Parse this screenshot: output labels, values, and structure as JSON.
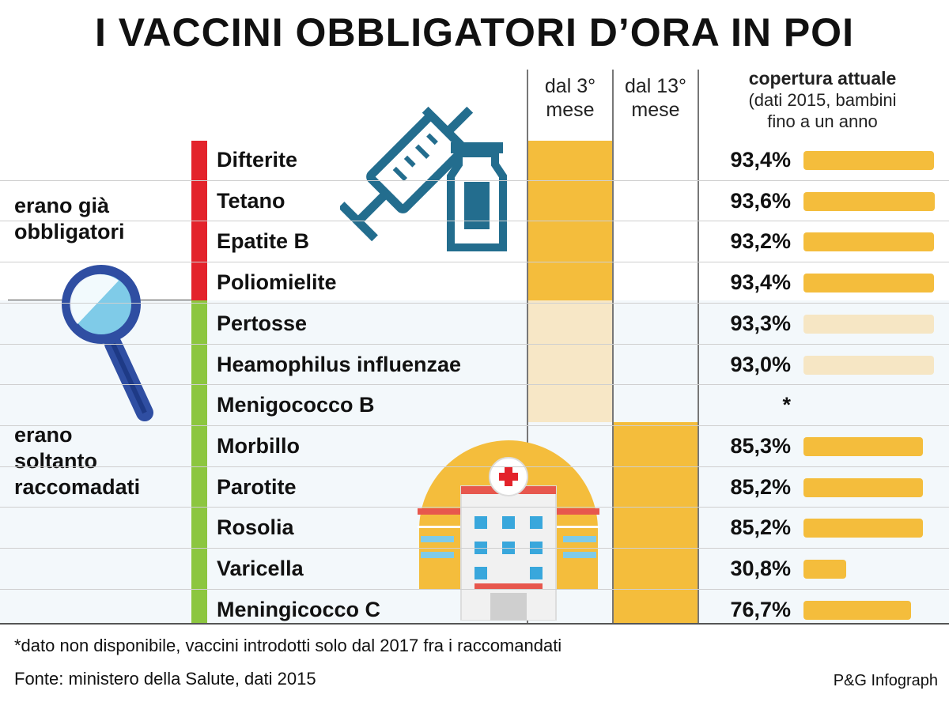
{
  "title": "I VACCINI OBBLIGATORI D’ORA IN POI",
  "columns": {
    "col1": [
      "dal 3°",
      "mese"
    ],
    "col2": [
      "dal 13°",
      "mese"
    ],
    "coverage_title": "copertura attuale",
    "coverage_sub1": "(dati 2015, bambini",
    "coverage_sub2": "fino a un anno"
  },
  "groups": {
    "already": [
      "erano già",
      "obbligatori"
    ],
    "recommended": [
      "erano",
      "soltanto",
      "raccomadati"
    ]
  },
  "chart_data": {
    "type": "bar",
    "title": "I VACCINI OBBLIGATORI D’ORA IN POI",
    "value_label": "copertura attuale (dati 2015, bambini fino a un anno",
    "categories": [
      "Difterite",
      "Tetano",
      "Epatite B",
      "Poliomielite",
      "Pertosse",
      "Heamophilus influenzae",
      "Menigococco B",
      "Morbillo",
      "Parotite",
      "Rosolia",
      "Varicella",
      "Meningicocco C"
    ],
    "values": [
      93.4,
      93.6,
      93.2,
      93.4,
      93.3,
      93.0,
      null,
      85.3,
      85.2,
      85.2,
      30.8,
      76.7
    ],
    "value_labels": [
      "93,4%",
      "93,6%",
      "93,2%",
      "93,4%",
      "93,3%",
      "93,0%",
      "*",
      "85,3%",
      "85,2%",
      "85,2%",
      "30,8%",
      "76,7%"
    ],
    "xlim": [
      0,
      100
    ],
    "schedule": [
      "dal 3° mese",
      "dal 3° mese",
      "dal 3° mese",
      "dal 3° mese",
      "dal 3° mese",
      "dal 3° mese",
      "dal 3° mese",
      "dal 13° mese",
      "dal 13° mese",
      "dal 13° mese",
      "dal 13° mese",
      "dal 13° mese"
    ],
    "group": [
      "erano già obbligatori",
      "erano già obbligatori",
      "erano già obbligatori",
      "erano già obbligatori",
      "erano soltanto raccomadati",
      "erano soltanto raccomadati",
      "erano soltanto raccomadati",
      "erano soltanto raccomadati",
      "erano soltanto raccomadati",
      "erano soltanto raccomadati",
      "erano soltanto raccomadati",
      "erano soltanto raccomadati"
    ]
  },
  "footnote": "*dato non disponibile, vaccini introdotti solo dal 2017 fra i raccomandati",
  "source": "Fonte: ministero della Salute, dati 2015",
  "credit": "P&G Infograph",
  "colors": {
    "bar_strong": "#f4bd3c",
    "bar_light": "#f6e6c4",
    "cell_light": "#f7e7c6",
    "red_group": "#e3232b",
    "green_group": "#8cc63f",
    "row_band": "#f2f8fb",
    "icon_blue": "#236d8e",
    "icon_light_blue": "#7fcbe8"
  }
}
